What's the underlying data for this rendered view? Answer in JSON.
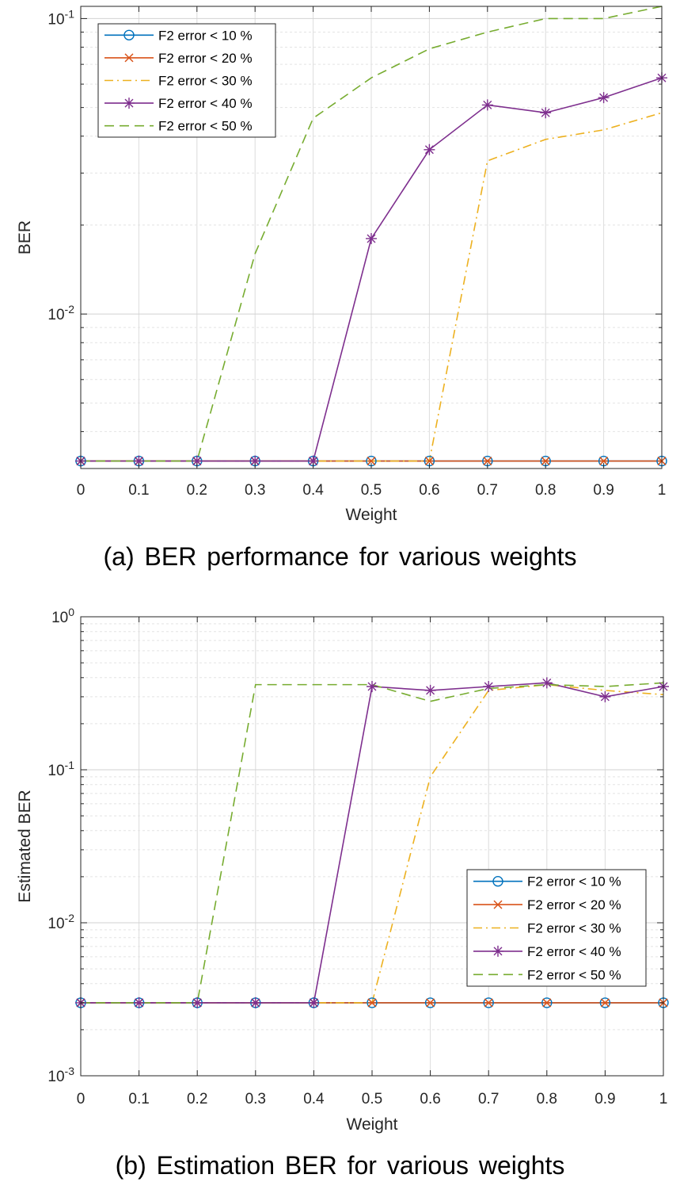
{
  "captions": {
    "a": "(a) BER performance for various weights",
    "b": "(b) Estimation BER for various weights"
  },
  "colors": {
    "s10": "#0072BD",
    "s20": "#D95319",
    "s30": "#EDB120",
    "s40": "#7E2F8E",
    "s50": "#77AC30"
  },
  "chart_data": [
    {
      "type": "line",
      "id": "a",
      "xlabel": "Weight",
      "ylabel": "BER",
      "yscale": "log",
      "xlim": [
        0,
        1
      ],
      "ylim": [
        0.003,
        0.11
      ],
      "xticks": [
        0,
        0.1,
        0.2,
        0.3,
        0.4,
        0.5,
        0.6,
        0.7,
        0.8,
        0.9,
        1
      ],
      "xtick_labels": [
        "0",
        "0.1",
        "0.2",
        "0.3",
        "0.4",
        "0.5",
        "0.6",
        "0.7",
        "0.8",
        "0.9",
        "1"
      ],
      "yticks": [
        {
          "value": 0.01,
          "base": "10",
          "exp": "-2"
        },
        {
          "value": 0.1,
          "base": "10",
          "exp": "-1"
        }
      ],
      "grid": true,
      "legend_position": "top-left",
      "x": [
        0,
        0.1,
        0.2,
        0.3,
        0.4,
        0.5,
        0.6,
        0.7,
        0.8,
        0.9,
        1
      ],
      "series": [
        {
          "name": "F2 error < 10 %",
          "color_key": "s10",
          "marker": "circle",
          "dash": "solid",
          "values": [
            0.00318,
            0.00318,
            0.00318,
            0.00318,
            0.00318,
            0.00318,
            0.00318,
            0.00318,
            0.00318,
            0.00318,
            0.00318
          ]
        },
        {
          "name": "F2 error < 20 %",
          "color_key": "s20",
          "marker": "x",
          "dash": "solid",
          "values": [
            0.00318,
            0.00318,
            0.00318,
            0.00318,
            0.00318,
            0.00318,
            0.00318,
            0.00318,
            0.00318,
            0.00318,
            0.00318
          ]
        },
        {
          "name": "F2 error < 30 %",
          "color_key": "s30",
          "marker": "none",
          "dash": "dashdot",
          "values": [
            0.00318,
            0.00318,
            0.00318,
            0.00318,
            0.00318,
            0.00318,
            0.00318,
            0.033,
            0.039,
            0.042,
            0.048
          ]
        },
        {
          "name": "F2 error < 40 %",
          "color_key": "s40",
          "marker": "star",
          "dash": "solid",
          "values": [
            0.00318,
            0.00318,
            0.00318,
            0.00318,
            0.00318,
            0.018,
            0.036,
            0.051,
            0.048,
            0.054,
            0.063
          ]
        },
        {
          "name": "F2 error < 50 %",
          "color_key": "s50",
          "marker": "none",
          "dash": "dashed",
          "values": [
            0.00318,
            0.00318,
            0.00318,
            0.016,
            0.046,
            0.063,
            0.079,
            0.09,
            0.1,
            0.1,
            0.11
          ]
        }
      ]
    },
    {
      "type": "line",
      "id": "b",
      "xlabel": "Weight",
      "ylabel": "Estimated BER",
      "yscale": "log",
      "xlim": [
        0,
        1
      ],
      "ylim": [
        0.001,
        1
      ],
      "xticks": [
        0,
        0.1,
        0.2,
        0.3,
        0.4,
        0.5,
        0.6,
        0.7,
        0.8,
        0.9,
        1
      ],
      "xtick_labels": [
        "0",
        "0.1",
        "0.2",
        "0.3",
        "0.4",
        "0.5",
        "0.6",
        "0.7",
        "0.8",
        "0.9",
        "1"
      ],
      "yticks": [
        {
          "value": 0.001,
          "base": "10",
          "exp": "-3"
        },
        {
          "value": 0.01,
          "base": "10",
          "exp": "-2"
        },
        {
          "value": 0.1,
          "base": "10",
          "exp": "-1"
        },
        {
          "value": 1,
          "base": "10",
          "exp": "0"
        }
      ],
      "grid": true,
      "legend_position": "bottom-right",
      "x": [
        0,
        0.1,
        0.2,
        0.3,
        0.4,
        0.5,
        0.6,
        0.7,
        0.8,
        0.9,
        1
      ],
      "series": [
        {
          "name": "F2 error < 10 %",
          "color_key": "s10",
          "marker": "circle",
          "dash": "solid",
          "values": [
            0.003,
            0.003,
            0.003,
            0.003,
            0.003,
            0.003,
            0.003,
            0.003,
            0.003,
            0.003,
            0.003
          ]
        },
        {
          "name": "F2 error < 20 %",
          "color_key": "s20",
          "marker": "x",
          "dash": "solid",
          "values": [
            0.003,
            0.003,
            0.003,
            0.003,
            0.003,
            0.003,
            0.003,
            0.003,
            0.003,
            0.003,
            0.003
          ]
        },
        {
          "name": "F2 error < 30 %",
          "color_key": "s30",
          "marker": "none",
          "dash": "dashdot",
          "values": [
            0.003,
            0.003,
            0.003,
            0.003,
            0.003,
            0.003,
            0.09,
            0.33,
            0.36,
            0.33,
            0.31
          ]
        },
        {
          "name": "F2 error < 40 %",
          "color_key": "s40",
          "marker": "star",
          "dash": "solid",
          "values": [
            0.003,
            0.003,
            0.003,
            0.003,
            0.003,
            0.35,
            0.33,
            0.35,
            0.37,
            0.3,
            0.35
          ]
        },
        {
          "name": "F2 error < 50 %",
          "color_key": "s50",
          "marker": "none",
          "dash": "dashed",
          "values": [
            0.003,
            0.003,
            0.003,
            0.36,
            0.36,
            0.36,
            0.28,
            0.34,
            0.36,
            0.35,
            0.37
          ]
        }
      ]
    }
  ]
}
